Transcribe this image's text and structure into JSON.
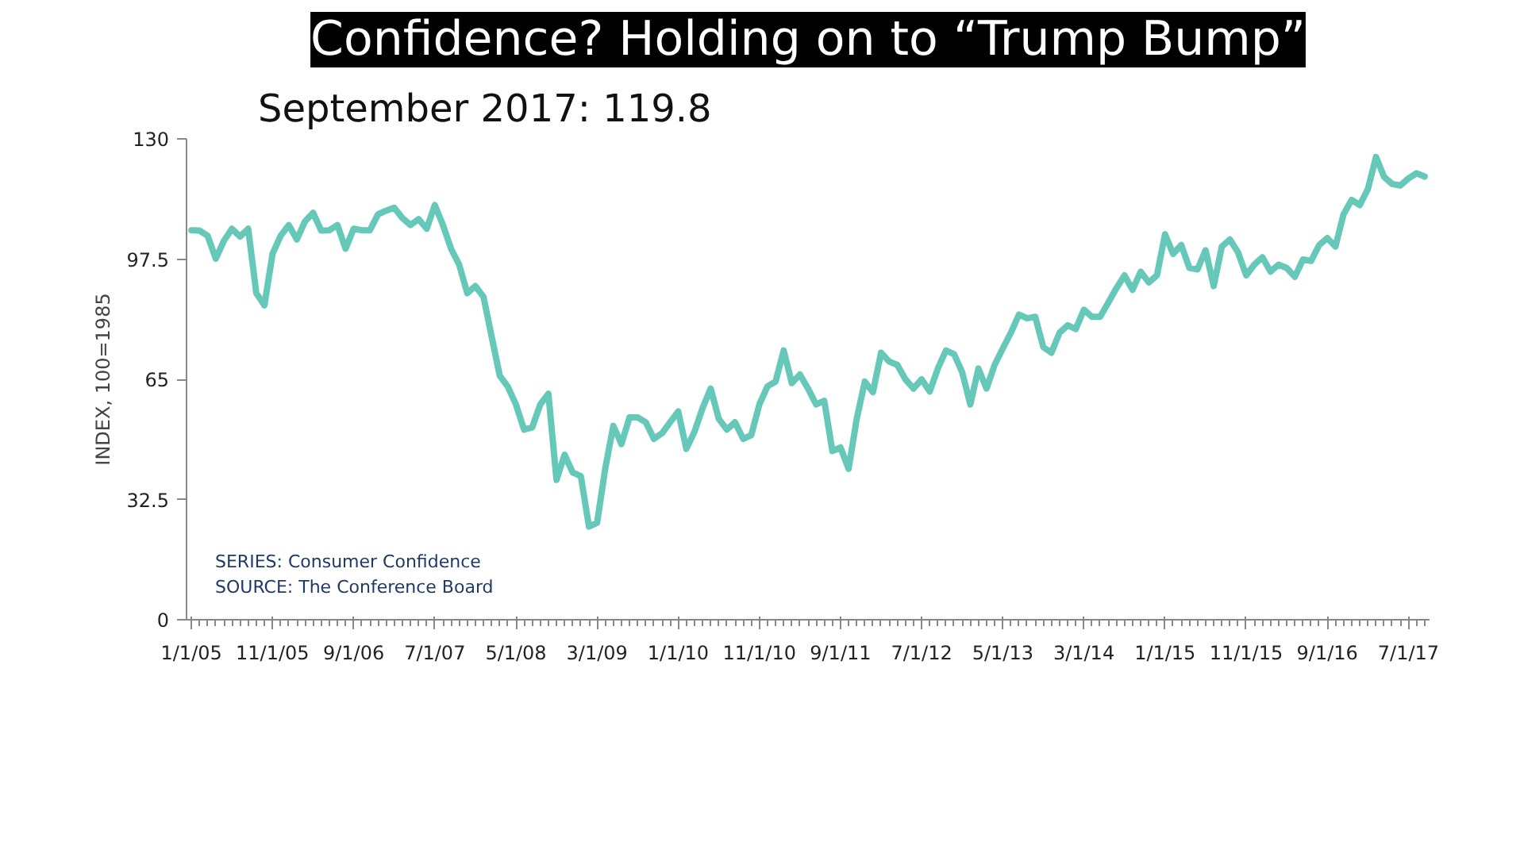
{
  "chart_data": {
    "type": "line",
    "title": "Confidence? Holding on to “Trump Bump”",
    "subtitle": "September 2017: 119.8",
    "ylabel": "INDEX, 100=1985",
    "annotations": [
      "SERIES: Consumer Confidence",
      "SOURCE: The Conference Board"
    ],
    "categories": [
      "1/1/05",
      null,
      null,
      null,
      null,
      null,
      null,
      null,
      null,
      null,
      "11/1/05",
      null,
      null,
      null,
      null,
      null,
      null,
      null,
      null,
      null,
      "9/1/06",
      null,
      null,
      null,
      null,
      null,
      null,
      null,
      null,
      null,
      "7/1/07",
      null,
      null,
      null,
      null,
      null,
      null,
      null,
      null,
      null,
      "5/1/08",
      null,
      null,
      null,
      null,
      null,
      null,
      null,
      null,
      null,
      "3/1/09",
      null,
      null,
      null,
      null,
      null,
      null,
      null,
      null,
      null,
      "1/1/10",
      null,
      null,
      null,
      null,
      null,
      null,
      null,
      null,
      null,
      "11/1/10",
      null,
      null,
      null,
      null,
      null,
      null,
      null,
      null,
      null,
      "9/1/11",
      null,
      null,
      null,
      null,
      null,
      null,
      null,
      null,
      null,
      "7/1/12",
      null,
      null,
      null,
      null,
      null,
      null,
      null,
      null,
      null,
      "5/1/13",
      null,
      null,
      null,
      null,
      null,
      null,
      null,
      null,
      null,
      "3/1/14",
      null,
      null,
      null,
      null,
      null,
      null,
      null,
      null,
      null,
      "1/1/15",
      null,
      null,
      null,
      null,
      null,
      null,
      null,
      null,
      null,
      "11/1/15",
      null,
      null,
      null,
      null,
      null,
      null,
      null,
      null,
      null,
      "9/1/16",
      null,
      null,
      null,
      null,
      null,
      null,
      null,
      null,
      null,
      "7/1/17",
      null,
      null
    ],
    "series": [
      {
        "color": "#66c8b8",
        "values": [
          105.3,
          105.2,
          103.8,
          97.6,
          102.4,
          105.7,
          103.6,
          105.7,
          88.3,
          85.0,
          98.9,
          103.8,
          106.7,
          102.8,
          107.7,
          110.0,
          105.2,
          105.3,
          106.7,
          100.3,
          105.7,
          105.3,
          105.3,
          109.6,
          110.6,
          111.4,
          108.6,
          106.7,
          108.3,
          105.7,
          112.1,
          106.7,
          100.3,
          96.0,
          88.3,
          90.2,
          87.3,
          76.6,
          66.0,
          63.0,
          58.2,
          51.4,
          52.0,
          58.2,
          61.1,
          37.8,
          44.6,
          39.8,
          38.8,
          25.2,
          26.2,
          40.8,
          52.4,
          47.5,
          54.7,
          54.7,
          53.4,
          48.9,
          50.4,
          53.4,
          56.3,
          46.2,
          50.8,
          57.2,
          62.5,
          54.3,
          51.4,
          53.4,
          48.9,
          49.9,
          58.2,
          63.1,
          64.4,
          72.8,
          64.0,
          66.3,
          62.5,
          58.2,
          59.2,
          45.6,
          46.6,
          40.8,
          54.3,
          64.4,
          61.5,
          72.2,
          69.8,
          68.9,
          65.0,
          62.5,
          65.0,
          61.7,
          67.9,
          72.8,
          71.8,
          66.9,
          58.2,
          67.9,
          62.5,
          68.9,
          73.3,
          77.6,
          82.5,
          81.5,
          81.9,
          73.7,
          72.2,
          77.6,
          79.6,
          78.6,
          83.8,
          81.9,
          81.9,
          85.7,
          89.6,
          93.1,
          89.2,
          94.1,
          91.2,
          93.1,
          104.2,
          98.9,
          101.3,
          95.1,
          94.7,
          99.9,
          90.2,
          100.9,
          102.8,
          99.3,
          93.1,
          96.0,
          98.0,
          94.1,
          96.0,
          95.1,
          92.7,
          97.4,
          97.0,
          101.3,
          103.2,
          100.9,
          109.6,
          113.5,
          112.1,
          116.4,
          125.1,
          119.7,
          117.8,
          117.4,
          119.3,
          120.7,
          119.8
        ]
      }
    ],
    "ylim": [
      0,
      130
    ],
    "yticks": [
      0,
      32.5,
      65,
      97.5,
      130
    ]
  }
}
